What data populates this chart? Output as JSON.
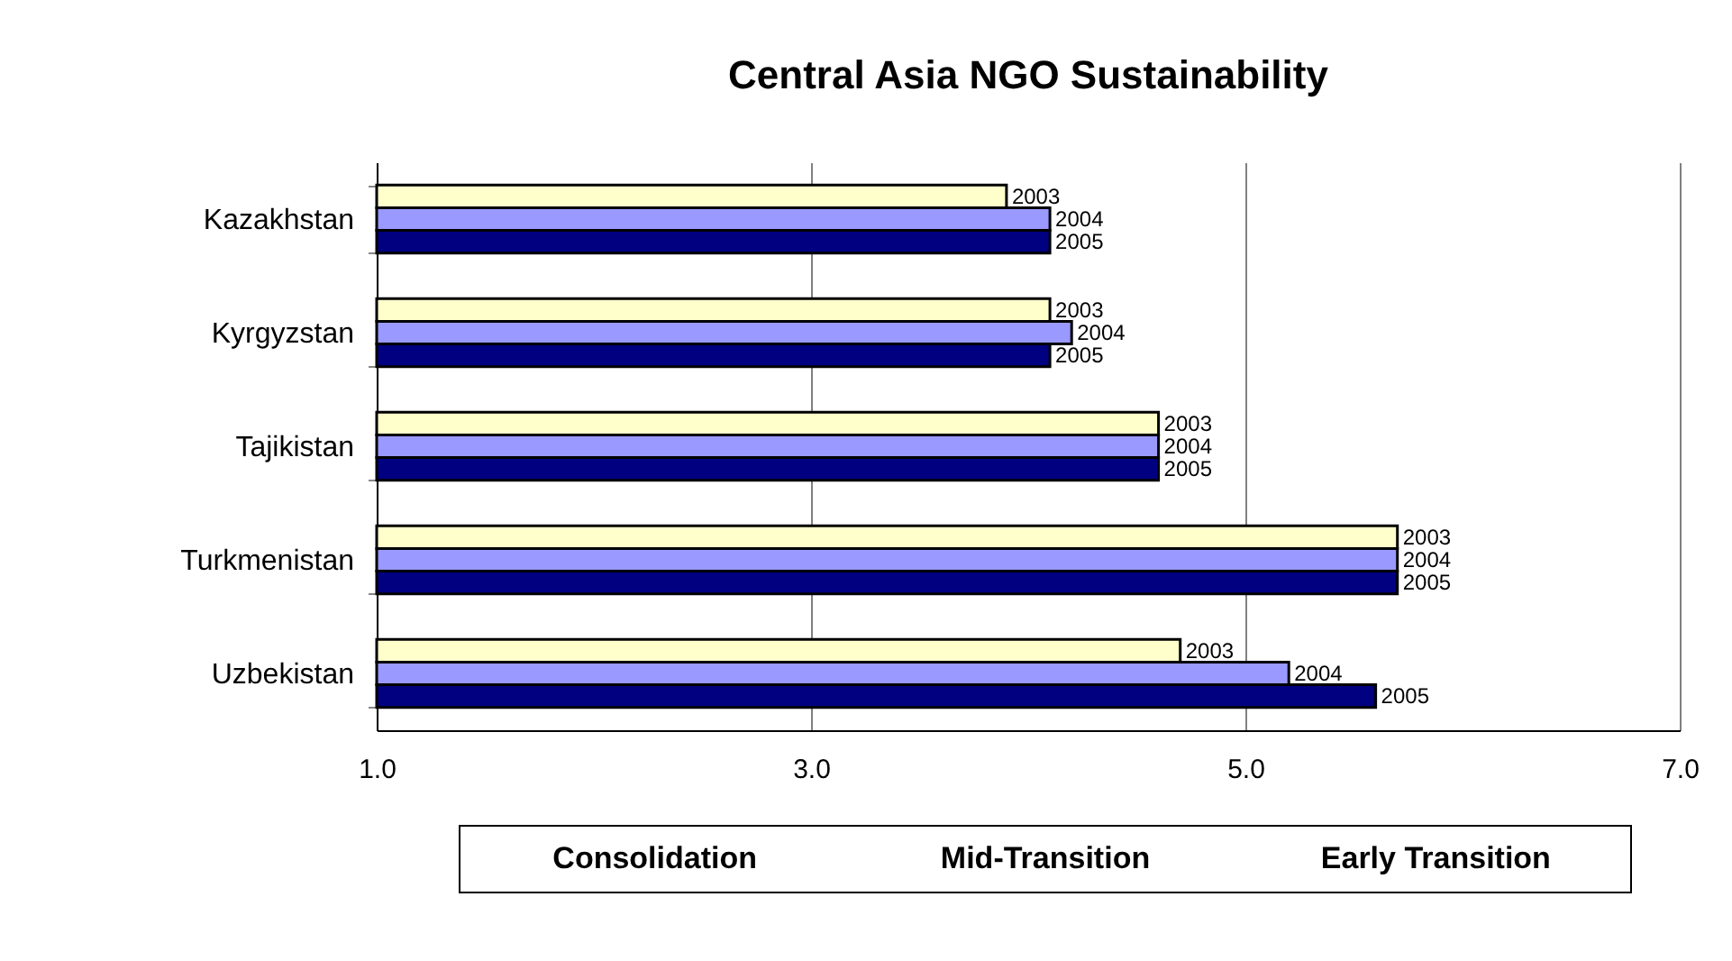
{
  "chart_data": {
    "type": "bar",
    "orientation": "horizontal",
    "title": "Central Asia NGO Sustainability",
    "categories": [
      "Kazakhstan",
      "Kyrgyzstan",
      "Tajikistan",
      "Turkmenistan",
      "Uzbekistan"
    ],
    "series": [
      {
        "name": "2003",
        "color": "#ffffcc",
        "values": [
          3.9,
          4.1,
          4.6,
          5.7,
          4.7
        ]
      },
      {
        "name": "2004",
        "color": "#9999ff",
        "values": [
          4.1,
          4.2,
          4.6,
          5.7,
          5.2
        ]
      },
      {
        "name": "2005",
        "color": "#000080",
        "values": [
          4.1,
          4.1,
          4.6,
          5.7,
          5.6
        ]
      }
    ],
    "xlim": [
      1.0,
      7.0
    ],
    "xticks": [
      {
        "value": 1,
        "label": "1.0"
      },
      {
        "value": 3,
        "label": "3.0"
      },
      {
        "value": 5,
        "label": "5.0"
      },
      {
        "value": 7,
        "label": "7.0"
      }
    ],
    "grid": "x",
    "legend": false,
    "annotations": [
      "Consolidation",
      "Mid-Transition",
      "Early Transition"
    ]
  }
}
